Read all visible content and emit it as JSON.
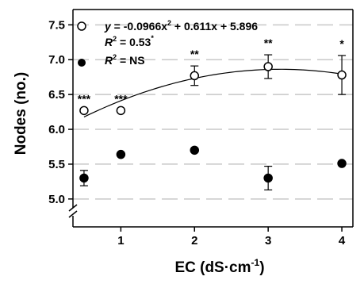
{
  "chart_data": {
    "type": "scatter",
    "xlabel": "EC (dS·cm",
    "xlabel_sup": "-1",
    "xlabel_close": ")",
    "ylabel": "Nodes (no.)",
    "x_ticks": [
      "1",
      "2",
      "3",
      "4"
    ],
    "y_ticks": [
      "5.0",
      "5.5",
      "6.0",
      "6.5",
      "7.0",
      "7.5"
    ],
    "xlim": [
      0.35,
      4.15
    ],
    "ylim": [
      4.85,
      7.72
    ],
    "grid": "horizontal dashed",
    "legend_position": "top-left",
    "series": [
      {
        "marker": "open-circle",
        "x": [
          0.5,
          1,
          2,
          3,
          4
        ],
        "y": [
          6.27,
          6.27,
          6.77,
          6.9,
          6.78
        ],
        "err": [
          0.0,
          0.0,
          0.14,
          0.17,
          0.28
        ],
        "significance": [
          "***",
          "***",
          "**",
          "**",
          "*"
        ],
        "fit": {
          "a": -0.0966,
          "b": 0.611,
          "c": 5.896,
          "x_range": [
            0.5,
            4.0
          ]
        },
        "legend": {
          "eq_y": "y",
          "eq_rest": " = -0.0966x",
          "eq_sup": "2",
          "eq_tail": " + 0.611x + 5.896",
          "r2_R": "R",
          "r2_sup": "2",
          "r2_val": " = 0.53",
          "r2_star": "*"
        }
      },
      {
        "marker": "filled-circle",
        "x": [
          0.5,
          1,
          2,
          3,
          4
        ],
        "y": [
          5.3,
          5.64,
          5.7,
          5.3,
          5.51
        ],
        "err": [
          0.11,
          0.0,
          0.0,
          0.17,
          0.0
        ],
        "legend": {
          "r2_R": "R",
          "r2_sup": "2",
          "r2_val": " = NS"
        }
      }
    ]
  }
}
